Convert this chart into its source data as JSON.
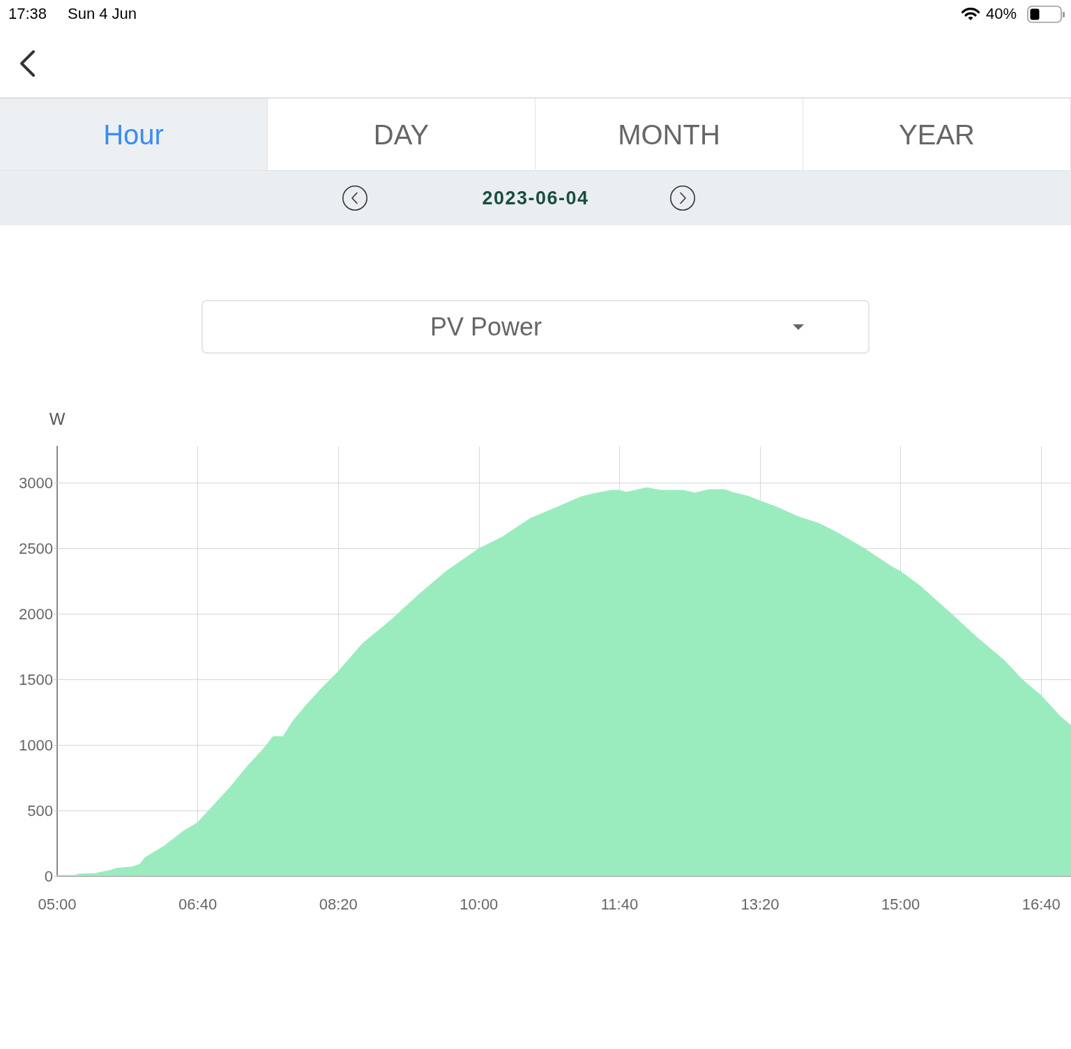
{
  "chart_data": {
    "type": "area",
    "title": "PV Power",
    "subtitle": "2023-06-04",
    "ylabel": "W",
    "annotations": [
      "17:38",
      "Sun 4 Jun",
      "40%",
      "Hour",
      "DAY",
      "MONTH",
      "YEAR"
    ],
    "x": [
      5.0,
      5.21,
      5.25,
      5.45,
      5.64,
      5.71,
      5.89,
      5.98,
      6.04,
      6.27,
      6.5,
      6.66,
      6.86,
      7.06,
      7.25,
      7.45,
      7.56,
      7.68,
      7.79,
      7.96,
      8.13,
      8.33,
      8.62,
      8.95,
      9.28,
      9.61,
      10.0,
      10.27,
      10.61,
      10.94,
      11.21,
      11.37,
      11.57,
      11.66,
      11.75,
      11.99,
      12.15,
      12.42,
      12.56,
      12.73,
      12.92,
      13.0,
      13.19,
      13.33,
      13.52,
      13.8,
      14.02,
      14.24,
      14.57,
      14.9,
      15.0,
      15.23,
      15.57,
      15.9,
      16.23,
      16.45,
      16.67,
      16.89,
      17.02
    ],
    "values": [
      5,
      5,
      15,
      20,
      45,
      60,
      70,
      90,
      140,
      230,
      345,
      405,
      545,
      685,
      835,
      975,
      1065,
      1065,
      1180,
      1310,
      1430,
      1560,
      1775,
      1950,
      2145,
      2325,
      2500,
      2585,
      2730,
      2820,
      2895,
      2920,
      2945,
      2945,
      2930,
      2965,
      2945,
      2945,
      2925,
      2950,
      2950,
      2930,
      2900,
      2865,
      2820,
      2740,
      2695,
      2625,
      2500,
      2360,
      2325,
      2215,
      2020,
      1825,
      1645,
      1495,
      1375,
      1220,
      1150
    ],
    "color": "#9aecbf",
    "xlim": [
      5,
      17.02
    ],
    "xticks": [
      {
        "value": 5,
        "label": "05:00"
      },
      {
        "value": 6.6667,
        "label": "06:40"
      },
      {
        "value": 8.3333,
        "label": "08:20"
      },
      {
        "value": 10,
        "label": "10:00"
      },
      {
        "value": 11.6667,
        "label": "11:40"
      },
      {
        "value": 13.3333,
        "label": "13:20"
      },
      {
        "value": 15,
        "label": "15:00"
      },
      {
        "value": 16.6667,
        "label": "16:40"
      }
    ],
    "ylim": [
      0,
      3280
    ],
    "yticks": [
      0,
      500,
      1000,
      1500,
      2000,
      2500,
      3000
    ],
    "grid": true
  }
}
